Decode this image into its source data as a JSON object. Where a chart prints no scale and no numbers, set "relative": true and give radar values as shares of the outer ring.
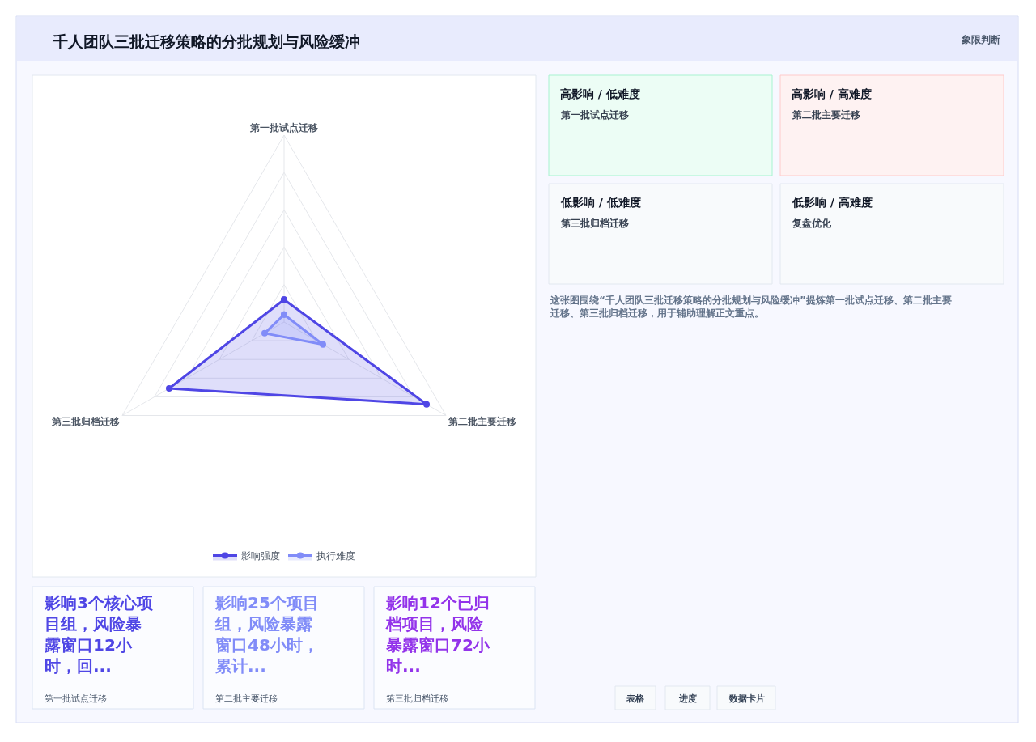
{
  "chart_data": [
    {
      "type": "radar",
      "title": "千人团队三批迁移策略的分批规划与风险缓冲",
      "categories": [
        "第一批试点迁移",
        "第二批主要迁移",
        "第三批归档迁移"
      ],
      "relative": true,
      "grid": true,
      "legend": "bottom",
      "marker": "circle",
      "series": [
        {
          "name": "影响强度",
          "color": "#4f46e5",
          "values": [
            0.12,
            0.88,
            0.71
          ]
        },
        {
          "name": "执行难度",
          "color": "#818cf8",
          "values": [
            0.04,
            0.24,
            0.12
          ]
        }
      ]
    },
    {
      "type": "other",
      "annotations": [
        "象限判断",
        "高影响 / 低难度",
        "第一批试点迁移",
        "高影响 / 高难度",
        "第二批主要迁移",
        "低影响 / 低难度",
        "第三批归档迁移",
        "低影响 / 高难度",
        "复盘优化",
        "这张图围绕“千人团队三批迁移策略的分批规划与风险缓冲”提炼第一批试点迁移、第二批主要迁移、第三批归档迁移，用于辅助理解正文重点。",
        "影响3个核心项目组，风险暴露窗口12小时，回...",
        "第一批试点迁移",
        "影响25个项目组，风险暴露窗口48小时，累计...",
        "第二批主要迁移",
        "影响12个已归档项目，风险暴露窗口72小时...",
        "第三批归档迁移",
        "表格",
        "进度",
        "数据卡片"
      ]
    }
  ]
}
